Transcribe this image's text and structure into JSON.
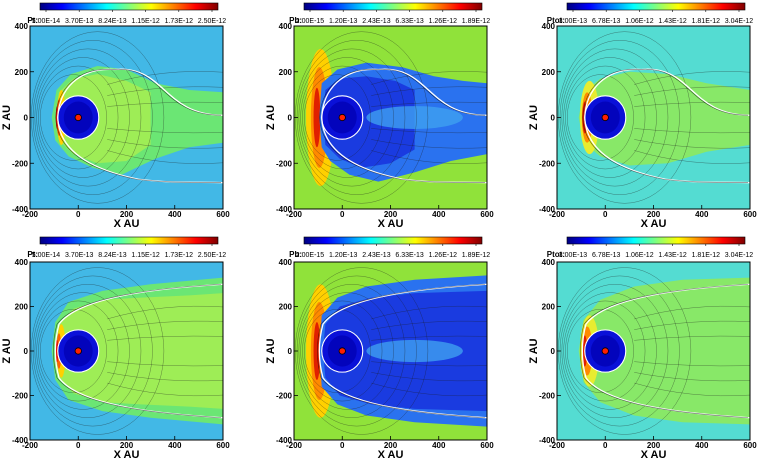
{
  "chart_data": [
    {
      "type": "heatmap",
      "variable": "Pt:",
      "colorbar_ticks": [
        "5.00E-14",
        "3.70E-13",
        "8.24E-13",
        "1.15E-12",
        "1.73E-12",
        "2.50E-12"
      ],
      "xlabel": "X AU",
      "ylabel": "Z AU",
      "xlim": [
        -200,
        600
      ],
      "ylim": [
        -400,
        400
      ],
      "xticks": [
        -200,
        0,
        200,
        400,
        600
      ],
      "yticks": [
        -400,
        -200,
        0,
        200,
        400
      ],
      "colormap": "jet",
      "heliopause_color": "#ffffff"
    },
    {
      "type": "heatmap",
      "variable": "Pb:",
      "colorbar_ticks": [
        "2.00E-15",
        "1.20E-13",
        "2.43E-13",
        "6.33E-13",
        "1.26E-12",
        "1.89E-12"
      ],
      "xlabel": "X AU",
      "ylabel": "Z AU",
      "xlim": [
        -200,
        600
      ],
      "ylim": [
        -400,
        400
      ],
      "xticks": [
        -200,
        0,
        200,
        400,
        600
      ],
      "yticks": [
        -400,
        -200,
        0,
        200,
        400
      ],
      "colormap": "jet",
      "heliopause_color": "#ffffff"
    },
    {
      "type": "heatmap",
      "variable": "Ptot:",
      "colorbar_ticks": [
        "3.00E-13",
        "6.78E-13",
        "1.06E-12",
        "1.43E-12",
        "1.81E-12",
        "3.04E-12"
      ],
      "xlabel": "X AU",
      "ylabel": "Z AU",
      "xlim": [
        -200,
        600
      ],
      "ylim": [
        -400,
        400
      ],
      "xticks": [
        -200,
        0,
        200,
        400,
        600
      ],
      "yticks": [
        -400,
        -200,
        0,
        200,
        400
      ],
      "colormap": "jet",
      "heliopause_color": "#ffffff"
    },
    {
      "type": "heatmap",
      "variable": "Pt:",
      "colorbar_ticks": [
        "5.00E-14",
        "3.70E-13",
        "8.24E-13",
        "1.15E-12",
        "1.73E-12",
        "2.50E-12"
      ],
      "xlabel": "X AU",
      "ylabel": "Z AU",
      "xlim": [
        -200,
        600
      ],
      "ylim": [
        -400,
        400
      ],
      "xticks": [
        -200,
        0,
        200,
        400,
        600
      ],
      "yticks": [
        -400,
        -200,
        0,
        200,
        400
      ],
      "colormap": "jet",
      "heliopause_color": "#ffffff"
    },
    {
      "type": "heatmap",
      "variable": "Pb:",
      "colorbar_ticks": [
        "2.00E-15",
        "1.20E-13",
        "2.43E-13",
        "6.33E-13",
        "1.26E-12",
        "1.89E-12"
      ],
      "xlabel": "X AU",
      "ylabel": "Z AU",
      "xlim": [
        -200,
        600
      ],
      "ylim": [
        -400,
        400
      ],
      "xticks": [
        -200,
        0,
        200,
        400,
        600
      ],
      "yticks": [
        -400,
        -200,
        0,
        200,
        400
      ],
      "colormap": "jet",
      "heliopause_color": "#ffffff"
    },
    {
      "type": "heatmap",
      "variable": "Ptot:",
      "colorbar_ticks": [
        "3.00E-13",
        "6.78E-13",
        "1.06E-12",
        "1.43E-12",
        "1.81E-12",
        "3.04E-12"
      ],
      "xlabel": "X AU",
      "ylabel": "Z AU",
      "xlim": [
        -200,
        600
      ],
      "ylim": [
        -400,
        400
      ],
      "xticks": [
        -200,
        0,
        200,
        400,
        600
      ],
      "yticks": [
        -400,
        -200,
        0,
        200,
        400
      ],
      "colormap": "jet",
      "heliopause_color": "#ffffff"
    }
  ]
}
